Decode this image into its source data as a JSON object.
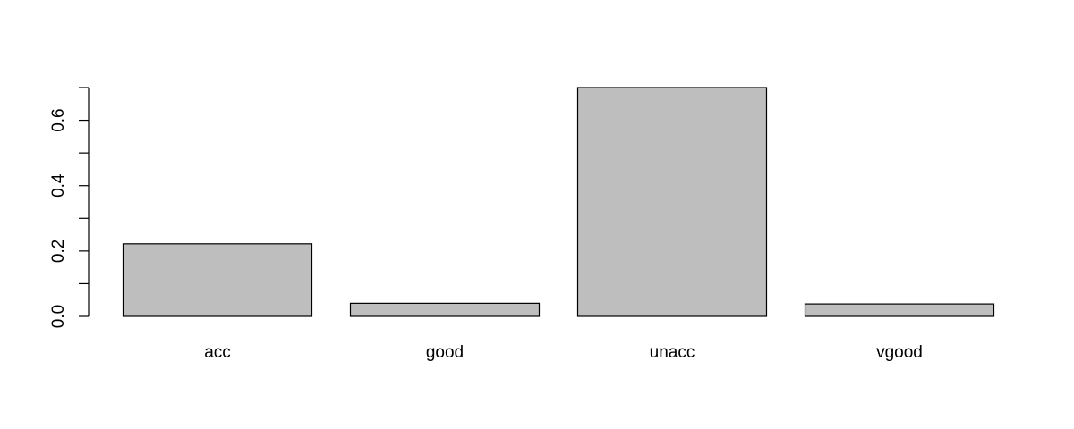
{
  "chart_data": {
    "type": "bar",
    "title": "",
    "xlabel": "",
    "ylabel": "",
    "categories": [
      "acc",
      "good",
      "unacc",
      "vgood"
    ],
    "values": [
      0.222,
      0.04,
      0.7,
      0.038
    ],
    "ylim": [
      0,
      0.7
    ],
    "yticks": [
      0.0,
      0.2,
      0.4,
      0.6
    ],
    "ytick_labels": [
      "0.0",
      "0.2",
      "0.4",
      "0.6"
    ],
    "grid": false,
    "legend": "none",
    "bar_color": "#bebebe",
    "border_color": "#000000"
  }
}
